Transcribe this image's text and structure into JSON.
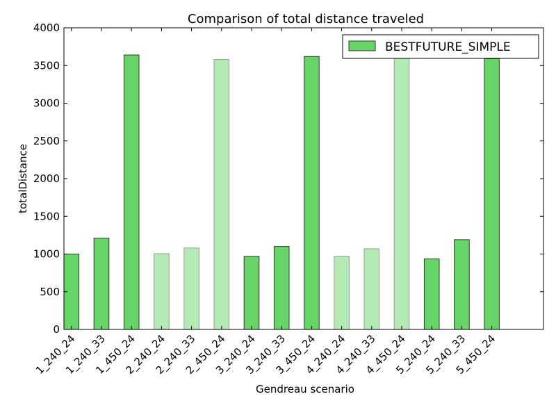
{
  "chart_data": {
    "type": "bar",
    "title": "Comparison of total distance traveled",
    "xlabel": "Gendreau scenario",
    "ylabel": "totalDistance",
    "ylim": [
      0,
      4000
    ],
    "yticks": [
      0,
      500,
      1000,
      1500,
      2000,
      2500,
      3000,
      3500,
      4000
    ],
    "grid": false,
    "legend_position": "top-right",
    "categories": [
      "1_240_24",
      "1_240_33",
      "1_450_24",
      "2_240_24",
      "2_240_33",
      "2_450_24",
      "3_240_24",
      "3_240_33",
      "3_450_24",
      "4_240_24",
      "4_240_33",
      "4_450_24",
      "5_240_24",
      "5_240_33",
      "5_450_24"
    ],
    "series": [
      {
        "name": "BESTFUTURE_SIMPLE",
        "values": [
          1000,
          1210,
          3640,
          1005,
          1080,
          3580,
          970,
          1100,
          3620,
          970,
          1070,
          3600,
          935,
          1190,
          3590
        ],
        "color": "#66d466",
        "light_color": "#b4eab4",
        "highlight": [
          true,
          true,
          true,
          false,
          false,
          false,
          true,
          true,
          true,
          false,
          false,
          false,
          true,
          true,
          true
        ]
      }
    ]
  }
}
